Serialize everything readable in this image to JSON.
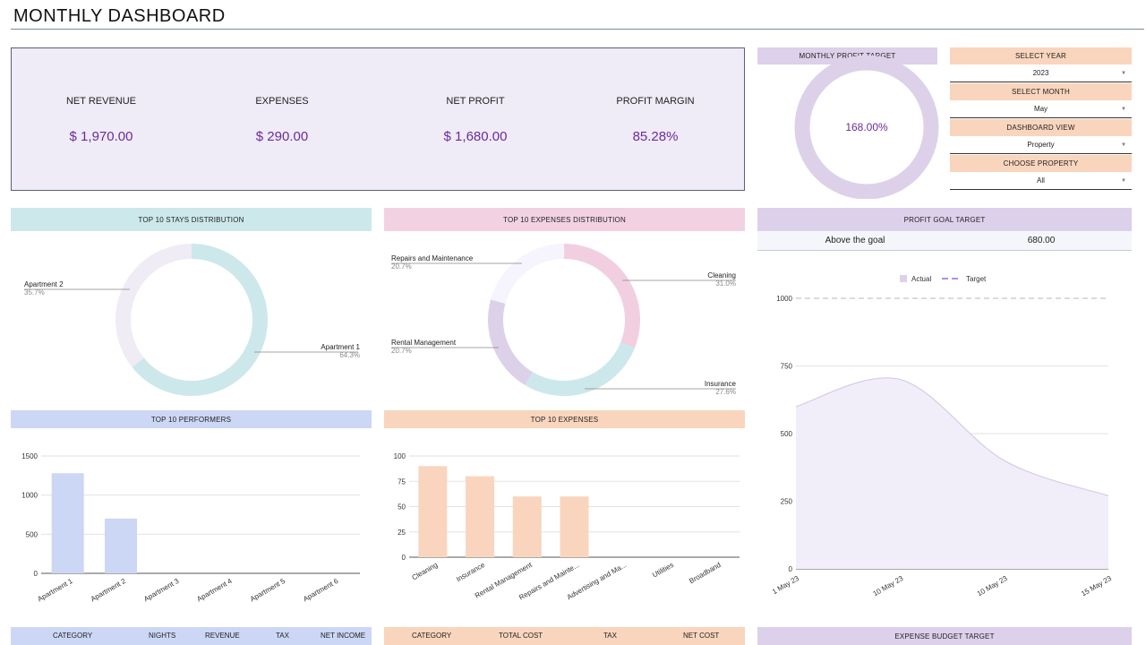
{
  "header": {
    "title": "MONTHLY DASHBOARD"
  },
  "kpis": [
    {
      "label": "NET REVENUE",
      "value": "$ 1,970.00"
    },
    {
      "label": "EXPENSES",
      "value": "$ 290.00"
    },
    {
      "label": "NET PROFIT",
      "value": "$ 1,680.00"
    },
    {
      "label": "PROFIT MARGIN",
      "value": "85.28%"
    }
  ],
  "profit_target": {
    "title": "MONTHLY PROFIT TARGET",
    "value": "168.00%",
    "fraction": 1.0,
    "color": "#ddd1ea"
  },
  "controls": [
    {
      "label": "SELECT YEAR",
      "value": "2023"
    },
    {
      "label": "SELECT MONTH",
      "value": "May"
    },
    {
      "label": "DASHBOARD VIEW",
      "value": "Property"
    },
    {
      "label": "CHOOSE PROPERTY",
      "value": "All"
    }
  ],
  "goal": {
    "title": "PROFIT GOAL TARGET",
    "status": "Above the goal",
    "value": "680.00"
  },
  "sections": {
    "stays": "TOP 10 STAYS DISTRIBUTION",
    "expenses_dist": "TOP 10 EXPENSES DISTRIBUTION",
    "performers": "TOP 10 PERFORMERS",
    "top_expenses": "TOP 10 EXPENSES",
    "expense_budget": "EXPENSE BUDGET TARGET"
  },
  "tables": {
    "performers_cols": [
      "CATEGORY",
      "NIGHTS",
      "REVENUE",
      "TAX",
      "NET INCOME"
    ],
    "expenses_cols": [
      "CATEGORY",
      "TOTAL COST",
      "TAX",
      "NET COST"
    ]
  },
  "colors": {
    "accent": "#6a2c9c",
    "teal": "#cde8ea",
    "pink": "#f2d2e2",
    "lavender": "#dcd0ea",
    "peach": "#f9d5bd",
    "blue": "#ccd7f5"
  },
  "chart_data": [
    {
      "type": "pie",
      "title": "TOP 10 STAYS DISTRIBUTION",
      "donut": true,
      "slices": [
        {
          "label": "Apartment 1",
          "value": 64.3,
          "pct": "64.3%",
          "color": "#cde8ea"
        },
        {
          "label": "Apartment 2",
          "value": 35.7,
          "pct": "35.7%",
          "color": "#efecf5"
        }
      ]
    },
    {
      "type": "pie",
      "title": "TOP 10 EXPENSES DISTRIBUTION",
      "donut": true,
      "slices": [
        {
          "label": "Cleaning",
          "value": 31.0,
          "pct": "31.0%",
          "color": "#f2cfe0"
        },
        {
          "label": "Insurance",
          "value": 27.6,
          "pct": "27.6%",
          "color": "#cde8ea"
        },
        {
          "label": "Rental Management",
          "value": 20.7,
          "pct": "20.7%",
          "color": "#ddd1ea"
        },
        {
          "label": "Repairs and Maintenance",
          "value": 20.7,
          "pct": "20.7%",
          "color": "#f6f4fc"
        }
      ]
    },
    {
      "type": "bar",
      "title": "TOP 10 PERFORMERS",
      "categories": [
        "Apartment 1",
        "Apartment 2",
        "Apartment 3",
        "Apartment 4",
        "Apartment 5",
        "Apartment 6"
      ],
      "values": [
        1280,
        700,
        0,
        0,
        0,
        0
      ],
      "ylim": [
        0,
        1500
      ],
      "yticks": [
        0,
        500,
        1000,
        1500
      ],
      "grid": true,
      "color": "#ccd7f5"
    },
    {
      "type": "bar",
      "title": "TOP 10 EXPENSES",
      "categories": [
        "Cleaning",
        "Insurance",
        "Rental Management",
        "Repairs and Mainte...",
        "Advertising and Ma...",
        "Utilities",
        "Broadband"
      ],
      "values": [
        90,
        80,
        60,
        60,
        0,
        0,
        0
      ],
      "ylim": [
        0,
        100
      ],
      "yticks": [
        0,
        25,
        50,
        75,
        100
      ],
      "grid": true,
      "color": "#f9d5bd"
    },
    {
      "type": "area",
      "categories": [
        "1 May 23",
        "10 May 23",
        "10 May 23",
        "15 May 23"
      ],
      "series": [
        {
          "name": "Actual",
          "values": [
            600,
            700,
            400,
            270
          ],
          "color": "#ddd1ea"
        },
        {
          "name": "Target",
          "values": [
            1000,
            1000,
            1000,
            1000
          ],
          "color": "#b48fe0",
          "dashed": true
        }
      ],
      "ylim": [
        0,
        1000
      ],
      "yticks": [
        0,
        250,
        500,
        750,
        1000
      ],
      "grid": true,
      "legend": "top"
    }
  ]
}
